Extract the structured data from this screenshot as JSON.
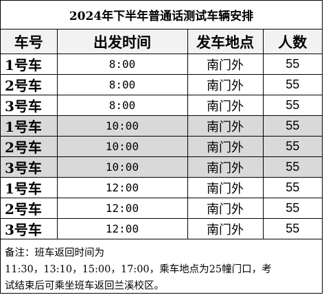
{
  "title": "2024年下半年普通话测试车辆安排",
  "headers": [
    "车号",
    "出发时间",
    "发车地点",
    "人数"
  ],
  "rows": [
    {
      "car": "1号车",
      "time": "8:00",
      "place": "南门外",
      "count": "55"
    },
    {
      "car": "2号车",
      "time": "8:00",
      "place": "南门外",
      "count": "55"
    },
    {
      "car": "3号车",
      "time": "8:00",
      "place": "南门外",
      "count": "55"
    },
    {
      "car": "1号车",
      "time": "10:00",
      "place": "南门外",
      "count": "55"
    },
    {
      "car": "2号车",
      "time": "10:00",
      "place": "南门外",
      "count": "55"
    },
    {
      "car": "3号车",
      "time": "10:00",
      "place": "南门外",
      "count": "55"
    },
    {
      "car": "1号车",
      "time": "12:00",
      "place": "南门外",
      "count": "55"
    },
    {
      "car": "2号车",
      "time": "12:00",
      "place": "南门外",
      "count": "55"
    },
    {
      "car": "3号车",
      "time": "12:00",
      "place": "南门外",
      "count": "55"
    }
  ],
  "shade_color": "#d9d9d9",
  "note": {
    "line1": "备注：班车返回时间为",
    "line2": "11:30，13:10，15:00，17:00，乘车地点为25幢门口，考",
    "line3": "试结束后可乘坐班车返回兰溪校区。"
  }
}
